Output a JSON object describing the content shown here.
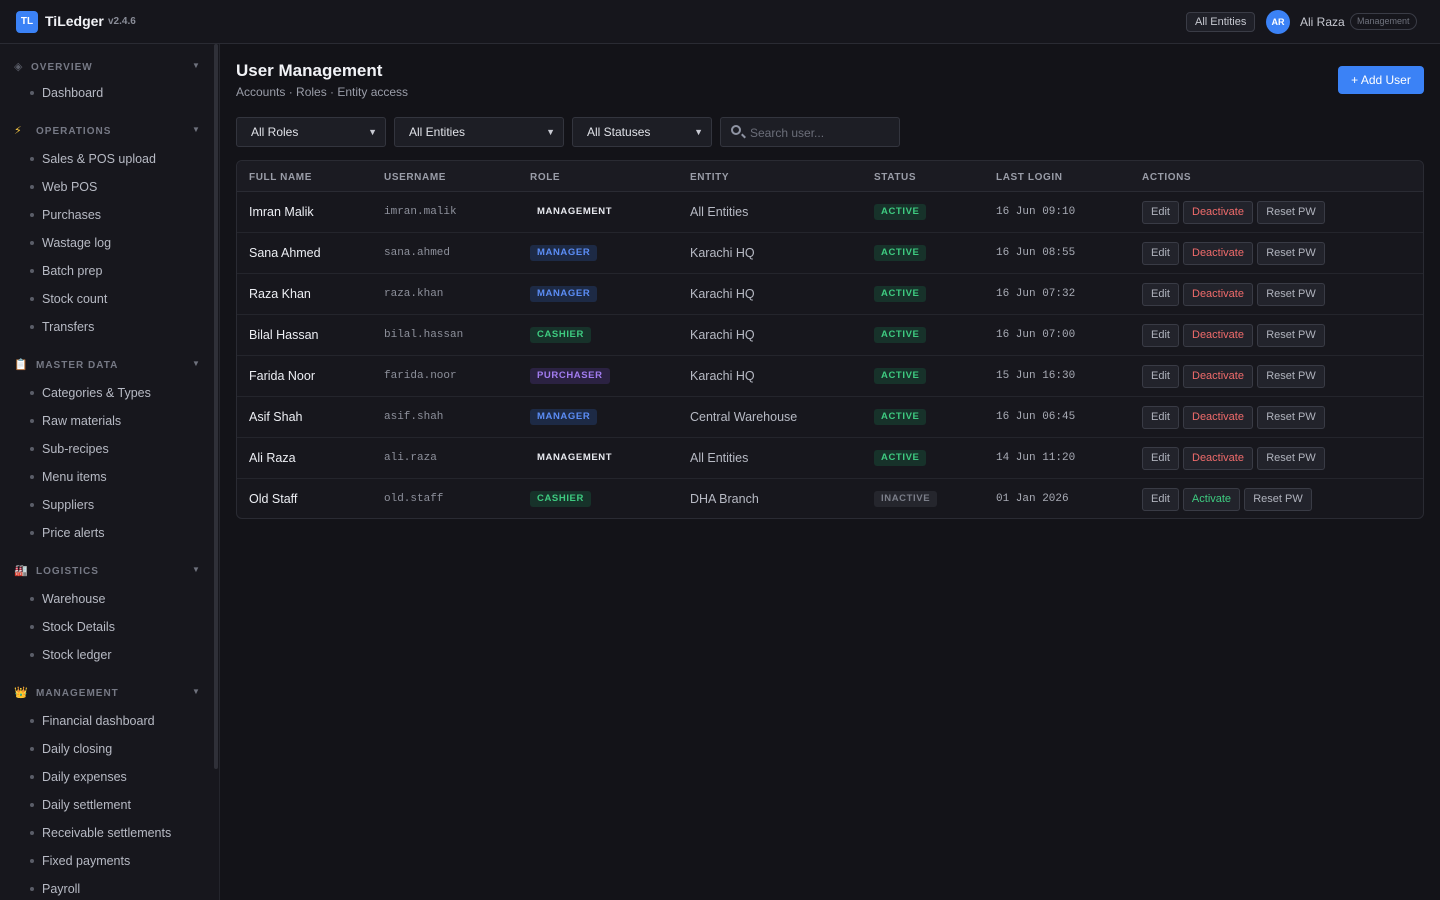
{
  "app": {
    "logo_text": "TL",
    "name": "TiLedger",
    "version": "v2.4.6"
  },
  "header": {
    "entity_filter": "All Entities",
    "avatar_initials": "AR",
    "user_name": "Ali Raza",
    "user_role": "Management"
  },
  "sidebar": {
    "sections": [
      {
        "title": "OVERVIEW",
        "icon": "diamond-icon",
        "items": [
          "Dashboard"
        ]
      },
      {
        "title": "OPERATIONS",
        "icon": "lightning-icon",
        "items": [
          "Sales & POS upload",
          "Web POS",
          "Purchases",
          "Wastage log",
          "Batch prep",
          "Stock count",
          "Transfers"
        ]
      },
      {
        "title": "MASTER DATA",
        "icon": "clipboard-icon",
        "items": [
          "Categories & Types",
          "Raw materials",
          "Sub-recipes",
          "Menu items",
          "Suppliers",
          "Price alerts"
        ]
      },
      {
        "title": "LOGISTICS",
        "icon": "warehouse-icon",
        "items": [
          "Warehouse",
          "Stock Details",
          "Stock ledger"
        ]
      },
      {
        "title": "MANAGEMENT",
        "icon": "crown-icon",
        "items": [
          "Financial dashboard",
          "Daily closing",
          "Daily expenses",
          "Daily settlement",
          "Receivable settlements",
          "Fixed payments",
          "Payroll"
        ]
      }
    ]
  },
  "page": {
    "title": "User Management",
    "subtitle": "Accounts · Roles · Entity access",
    "add_button": "+ Add User"
  },
  "filters": {
    "role": "All Roles",
    "entity": "All Entities",
    "status": "All Statuses",
    "search_placeholder": "Search user..."
  },
  "table": {
    "headers": [
      "FULL NAME",
      "USERNAME",
      "ROLE",
      "ENTITY",
      "STATUS",
      "LAST LOGIN",
      "ACTIONS"
    ],
    "rows": [
      {
        "name": "Imran Malik",
        "username": "imran.malik",
        "role": "MANAGEMENT",
        "entity": "All Entities",
        "status": "ACTIVE",
        "last_login": "16 Jun 09:10",
        "edit": "Edit",
        "toggle": "Deactivate",
        "reset": "Reset PW"
      },
      {
        "name": "Sana Ahmed",
        "username": "sana.ahmed",
        "role": "MANAGER",
        "entity": "Karachi HQ",
        "status": "ACTIVE",
        "last_login": "16 Jun 08:55",
        "edit": "Edit",
        "toggle": "Deactivate",
        "reset": "Reset PW"
      },
      {
        "name": "Raza Khan",
        "username": "raza.khan",
        "role": "MANAGER",
        "entity": "Karachi HQ",
        "status": "ACTIVE",
        "last_login": "16 Jun 07:32",
        "edit": "Edit",
        "toggle": "Deactivate",
        "reset": "Reset PW"
      },
      {
        "name": "Bilal Hassan",
        "username": "bilal.hassan",
        "role": "CASHIER",
        "entity": "Karachi HQ",
        "status": "ACTIVE",
        "last_login": "16 Jun 07:00",
        "edit": "Edit",
        "toggle": "Deactivate",
        "reset": "Reset PW"
      },
      {
        "name": "Farida Noor",
        "username": "farida.noor",
        "role": "PURCHASER",
        "entity": "Karachi HQ",
        "status": "ACTIVE",
        "last_login": "15 Jun 16:30",
        "edit": "Edit",
        "toggle": "Deactivate",
        "reset": "Reset PW"
      },
      {
        "name": "Asif Shah",
        "username": "asif.shah",
        "role": "MANAGER",
        "entity": "Central Warehouse",
        "status": "ACTIVE",
        "last_login": "16 Jun 06:45",
        "edit": "Edit",
        "toggle": "Deactivate",
        "reset": "Reset PW"
      },
      {
        "name": "Ali Raza",
        "username": "ali.raza",
        "role": "MANAGEMENT",
        "entity": "All Entities",
        "status": "ACTIVE",
        "last_login": "14 Jun 11:20",
        "edit": "Edit",
        "toggle": "Deactivate",
        "reset": "Reset PW"
      },
      {
        "name": "Old Staff",
        "username": "old.staff",
        "role": "CASHIER",
        "entity": "DHA Branch",
        "status": "INACTIVE",
        "last_login": "01 Jan 2026",
        "edit": "Edit",
        "toggle": "Activate",
        "reset": "Reset PW"
      }
    ]
  },
  "colors": {
    "accent": "#3b82f6",
    "active": "#3ecb80",
    "danger": "#ef6b6b",
    "purchaser": "#a27cf0",
    "background": "#131318"
  }
}
